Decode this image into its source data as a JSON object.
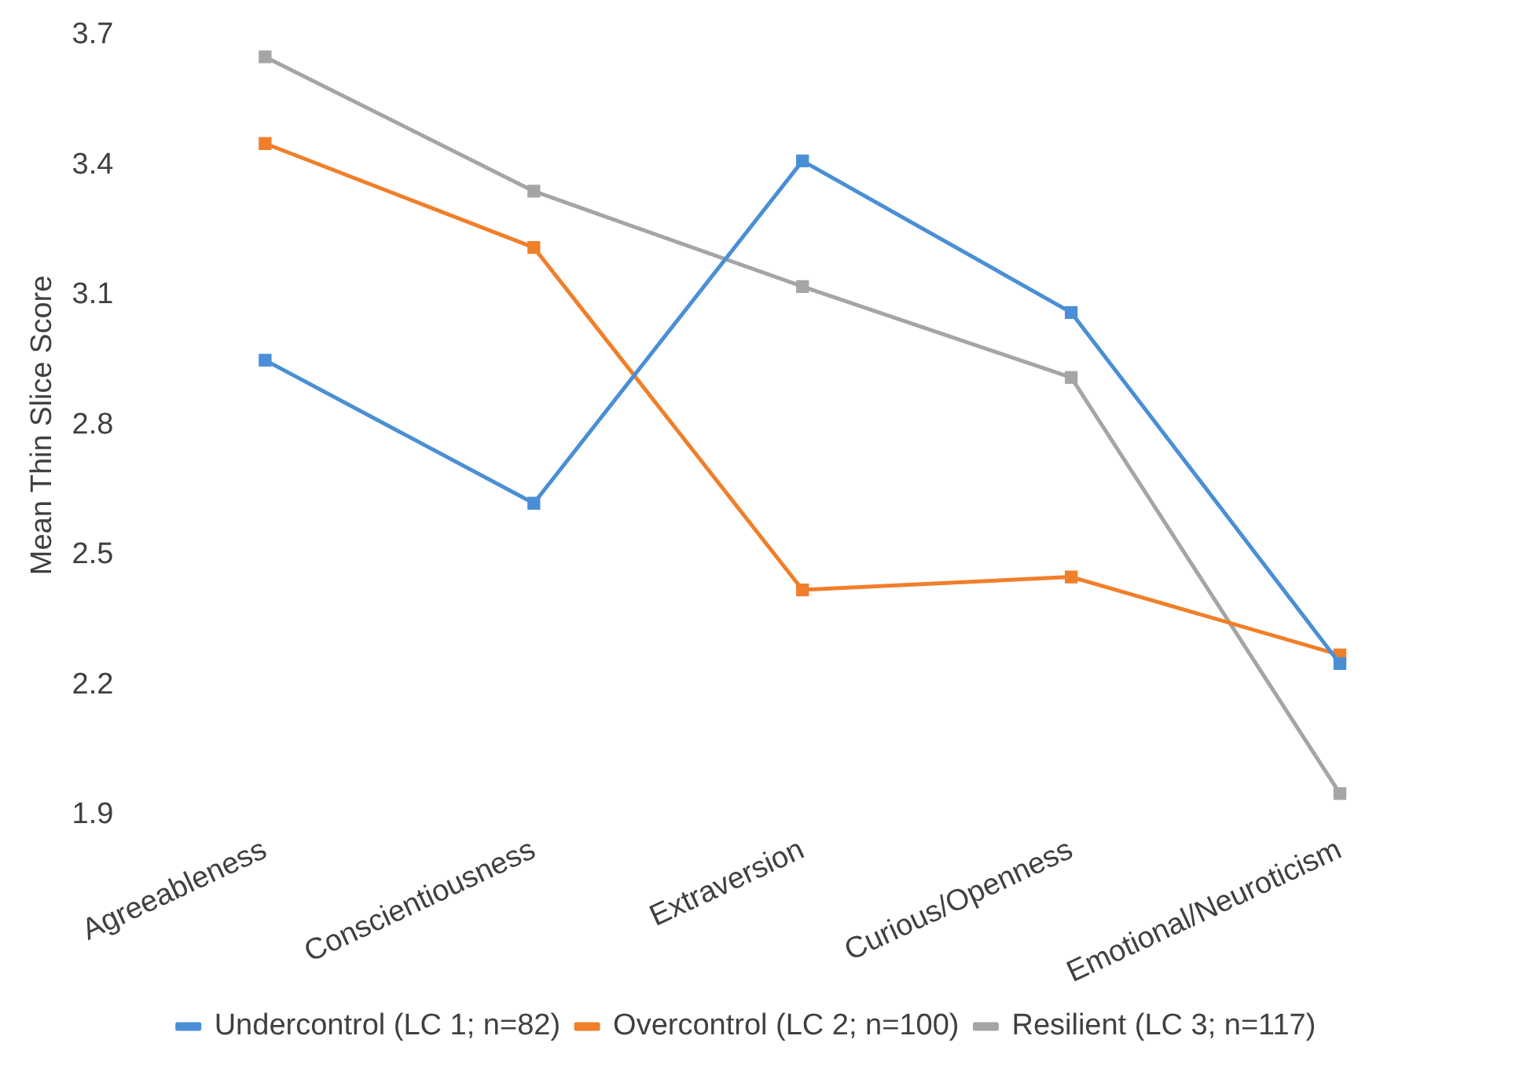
{
  "chart_data": {
    "type": "line",
    "ylabel": "Mean Thin Slice Score",
    "categories": [
      "Agreeableness",
      "Conscientiousness",
      "Extraversion",
      "Curious/Openness",
      "Emotional/Neuroticism"
    ],
    "series": [
      {
        "name": "Undercontrol (LC 1; n=82)",
        "color": "#4a8fd6",
        "values": [
          2.95,
          2.62,
          3.41,
          3.06,
          2.25
        ]
      },
      {
        "name": "Overcontrol (LC 2; n=100)",
        "color": "#f07f2a",
        "values": [
          3.45,
          3.21,
          2.42,
          2.45,
          2.27
        ]
      },
      {
        "name": "Resilient (LC 3; n=117)",
        "color": "#a5a5a5",
        "values": [
          3.65,
          3.34,
          3.12,
          2.91,
          1.95
        ]
      }
    ],
    "ylim": [
      1.9,
      3.7
    ],
    "yticks": [
      1.9,
      2.2,
      2.5,
      2.8,
      3.1,
      3.4,
      3.7
    ],
    "grid": false,
    "legend": "bottom",
    "marker": "square",
    "line_style": "solid"
  }
}
